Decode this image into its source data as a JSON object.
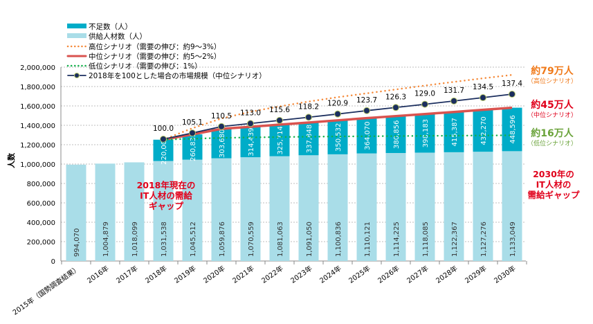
{
  "chart_data": {
    "type": "bar",
    "stacked": true,
    "ylabel": "人数",
    "ylim": [
      0,
      2000000
    ],
    "yticks": [
      "0",
      "200,000",
      "400,000",
      "600,000",
      "800,000",
      "1,000,000",
      "1,200,000",
      "1,400,000",
      "1,600,000",
      "1,800,000",
      "2,000,000"
    ],
    "grid": true,
    "legend_position": "top-left",
    "categories": [
      "2015年（国勢調査結果）",
      "2016年",
      "2017年",
      "2018年",
      "2019年",
      "2020年",
      "2021年",
      "2022年",
      "2023年",
      "2024年",
      "2025年",
      "2026年",
      "2027年",
      "2028年",
      "2029年",
      "2030年"
    ],
    "series": [
      {
        "name": "供給人材数（人）",
        "color": "#a9dde8",
        "values": [
          994070,
          1004879,
          1018099,
          1031538,
          1045512,
          1059876,
          1070559,
          1081063,
          1091050,
          1100836,
          1110121,
          1114225,
          1118085,
          1122367,
          1127276,
          1133049
        ],
        "labels": [
          "994,070",
          "1,004,879",
          "1,018,099",
          "1,031,538",
          "1,045,512",
          "1,059,876",
          "1,070,559",
          "1,081,063",
          "1,091,050",
          "1,100,836",
          "1,110,121",
          "1,114,225",
          "1,118,085",
          "1,122,367",
          "1,127,276",
          "1,133,049"
        ]
      },
      {
        "name": "不足数（人）",
        "color": "#00acc8",
        "values": [
          null,
          null,
          null,
          220000,
          260835,
          303680,
          314439,
          325714,
          337848,
          350532,
          364070,
          380856,
          398183,
          415387,
          432270,
          448596
        ],
        "labels": [
          "",
          "",
          "",
          "220,000",
          "260,835",
          "303,680",
          "314,439",
          "325,714",
          "337,848",
          "350,532",
          "364,070",
          "380,856",
          "398,183",
          "415,387",
          "432,270",
          "448,596"
        ]
      }
    ],
    "lines": [
      {
        "name": "高位シナリオ（需要の伸び：約9～3%）",
        "color": "#f58a3a",
        "style": "dotted",
        "values": [
          null,
          null,
          null,
          1251538,
          1370000,
          1470000,
          1540000,
          1595000,
          1645000,
          1690000,
          1730000,
          1770000,
          1810000,
          1848000,
          1885000,
          1920000
        ]
      },
      {
        "name": "中位シナリオ（需要の伸び：約5～2%）",
        "color": "#d9534f",
        "style": "solid",
        "values": [
          null,
          null,
          null,
          1251538,
          1306347,
          1363556,
          1384998,
          1406777,
          1428898,
          1451368,
          1474191,
          1495081,
          1516268,
          1537754,
          1559546,
          1581645
        ]
      },
      {
        "name": "低位シナリオ（需要の伸び：1%）",
        "color": "#12b04a",
        "style": "dotted",
        "values": [
          null,
          null,
          null,
          1251538,
          1262000,
          1270000,
          1275000,
          1279000,
          1282000,
          1285000,
          1287000,
          1289000,
          1291000,
          1293000,
          1295000,
          1297000
        ]
      },
      {
        "name": "2018年を100とした場合の市場規模（中位シナリオ）",
        "color": "#1b2e5e",
        "style": "marker",
        "values": [
          null,
          null,
          null,
          100.0,
          105.1,
          110.5,
          113.0,
          115.6,
          118.2,
          120.9,
          123.7,
          126.3,
          129.0,
          131.7,
          134.5,
          137.4
        ],
        "labels": [
          "",
          "",
          "",
          "100.0",
          "105.1",
          "110.5",
          "113.0",
          "115.6",
          "118.2",
          "120.9",
          "123.7",
          "126.3",
          "129.0",
          "131.7",
          "134.5",
          "137.4"
        ]
      }
    ],
    "annotations": {
      "gap2018": [
        "2018年現在の",
        "IT人材の需給",
        "ギャップ"
      ],
      "gap2030": [
        "2030年の",
        "IT人材の",
        "需給ギャップ"
      ],
      "high": {
        "value": "約79万人",
        "sub": "（高位シナリオ）",
        "color": "#f07a1a"
      },
      "mid": {
        "value": "約45万人",
        "sub": "（中位シナリオ）",
        "color": "#e0001b"
      },
      "low": {
        "value": "約16万人",
        "sub": "（低位シナリオ）",
        "color": "#6aa33a"
      }
    }
  }
}
